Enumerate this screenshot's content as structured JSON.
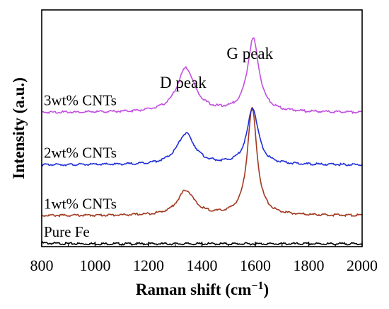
{
  "chart_data": {
    "type": "line",
    "xlabel": "Raman shift (cm",
    "xlabel_sup": "−1",
    "xlabel_close": ")",
    "ylabel": "Intensity (a.u.)",
    "xlim": [
      800,
      2000
    ],
    "x_ticks": [
      "800",
      "1000",
      "1200",
      "1400",
      "1600",
      "1800",
      "2000"
    ],
    "y_ticks": "none",
    "grid": false,
    "legend": "none",
    "annotations": [
      {
        "text": "D peak",
        "x": 1340
      },
      {
        "text": "G peak",
        "x": 1590
      }
    ],
    "series": [
      {
        "name": "Pure Fe",
        "color": "#000000",
        "baseline": 0.05,
        "slope_start": 0.015,
        "peaks": []
      },
      {
        "name": "1wt% CNTs",
        "color": "#a0391f",
        "baseline": 0.55,
        "peaks": [
          {
            "center": 1340,
            "height": 0.44,
            "width": 38
          },
          {
            "center": 1588,
            "height": 1.9,
            "width": 22
          }
        ]
      },
      {
        "name": "2wt% CNTs",
        "color": "#1f2fd6",
        "baseline": 1.45,
        "peaks": [
          {
            "center": 1340,
            "height": 0.55,
            "width": 40
          },
          {
            "center": 1590,
            "height": 1.0,
            "width": 25
          }
        ]
      },
      {
        "name": "3wt% CNTs",
        "color": "#c34fe0",
        "baseline": 2.38,
        "peaks": [
          {
            "center": 1340,
            "height": 0.78,
            "width": 40
          },
          {
            "center": 1592,
            "height": 1.3,
            "width": 26
          }
        ]
      }
    ]
  }
}
